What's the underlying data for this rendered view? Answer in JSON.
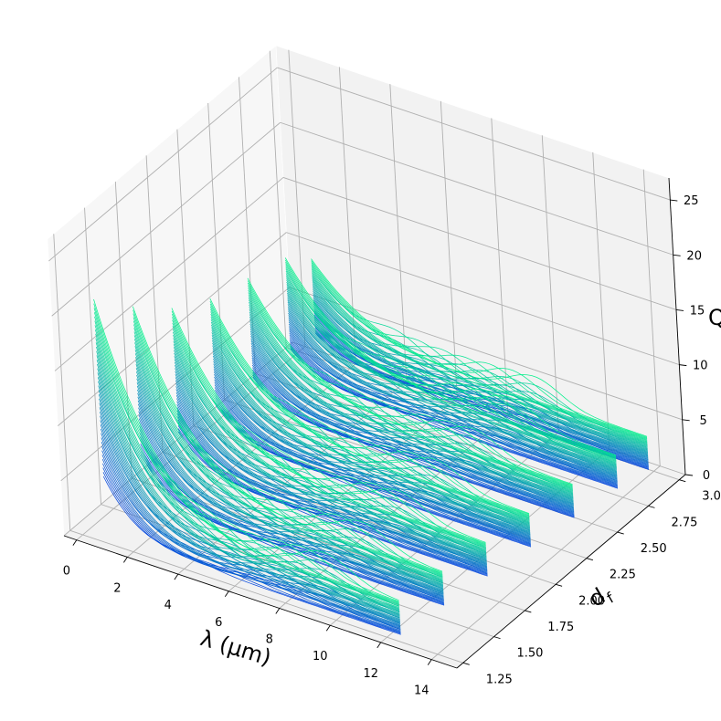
{
  "chart_data": {
    "type": "line",
    "projection": "3d",
    "title": "",
    "xlabel": "λ (μm)",
    "ylabel": "d_f",
    "zlabel": "Q",
    "xlim": [
      -0.5,
      15
    ],
    "ylim": [
      1.2,
      3.05
    ],
    "zlim": [
      0,
      27
    ],
    "xticks": [
      0,
      2,
      4,
      6,
      8,
      10,
      12,
      14
    ],
    "xtick_labels": [
      "0",
      "2",
      "4",
      "6",
      "8",
      "10",
      "12",
      "14"
    ],
    "yticks": [
      1.25,
      1.5,
      1.75,
      2.0,
      2.25,
      2.5,
      2.75,
      3.0
    ],
    "ytick_labels": [
      "1.25",
      "1.50",
      "1.75",
      "2.00",
      "2.25",
      "2.50",
      "2.75",
      "3.00"
    ],
    "zticks": [
      0,
      5,
      10,
      15,
      20,
      25
    ],
    "ztick_labels": [
      "0",
      "5",
      "10",
      "15",
      "20",
      "25"
    ],
    "grid": true,
    "colormap": "winter",
    "color_low": "#0044dd",
    "color_high": "#00f08a",
    "lambda_range": [
      0.7,
      14.0
    ],
    "curves_per_df": 42,
    "df_values": [
      1.3,
      1.6,
      1.9,
      2.2,
      2.5,
      2.8,
      3.0
    ],
    "peak_Q_by_df": [
      21.5,
      18.0,
      15.0,
      13.0,
      12.0,
      11.0,
      9.0
    ]
  }
}
